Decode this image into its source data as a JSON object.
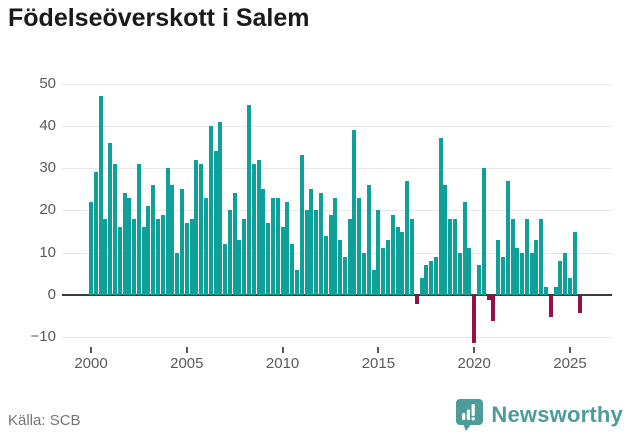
{
  "title": "Födelseöverskott i Salem",
  "footer": {
    "source": "Källa: SCB",
    "brand": "Newsworthy"
  },
  "colors": {
    "positive_bar": "#0FA099",
    "negative_bar": "#951049",
    "gridline": "#e7e7e7",
    "axis_line": "#3b3b3b",
    "tick_label": "#5a5a5a",
    "title_text": "#1a1a1a",
    "source_text": "#757575",
    "brand_teal": "#4E9C99"
  },
  "chart_data": {
    "type": "bar",
    "title": "Födelseöverskott i Salem",
    "xlabel": "",
    "ylabel": "",
    "ylim": [
      -14,
      52
    ],
    "grid": true,
    "frequency": "quarterly",
    "start_period": "2000Q1",
    "end_period": "2025Q3",
    "y_ticks": [
      50,
      40,
      30,
      20,
      10,
      0,
      -10
    ],
    "y_tick_labels": [
      "50",
      "40",
      "30",
      "20",
      "10",
      "0",
      "−10"
    ],
    "x_tick_years": [
      2000,
      2005,
      2010,
      2015,
      2020,
      2025
    ],
    "x_tick_labels": [
      "2000",
      "2005",
      "2010",
      "2015",
      "2020",
      "2025"
    ],
    "series": [
      {
        "name": "Födelseöverskott",
        "values": [
          22,
          29,
          47,
          18,
          36,
          31,
          16,
          24,
          23,
          18,
          31,
          16,
          21,
          26,
          18,
          19,
          30,
          26,
          10,
          25,
          17,
          18,
          32,
          31,
          23,
          40,
          34,
          41,
          12,
          20,
          24,
          13,
          18,
          45,
          31,
          32,
          25,
          17,
          23,
          23,
          16,
          22,
          12,
          6,
          33,
          20,
          25,
          20,
          24,
          14,
          19,
          23,
          13,
          9,
          18,
          39,
          23,
          10,
          26,
          6,
          20,
          11,
          13,
          19,
          16,
          15,
          27,
          18,
          -2,
          4,
          7,
          8,
          9,
          37,
          26,
          18,
          18,
          10,
          22,
          11,
          -11,
          7,
          30,
          -1,
          -6,
          13,
          9,
          27,
          18,
          11,
          10,
          18,
          10,
          13,
          18,
          2,
          -5,
          2,
          8,
          10,
          4,
          15,
          -4
        ]
      }
    ]
  }
}
